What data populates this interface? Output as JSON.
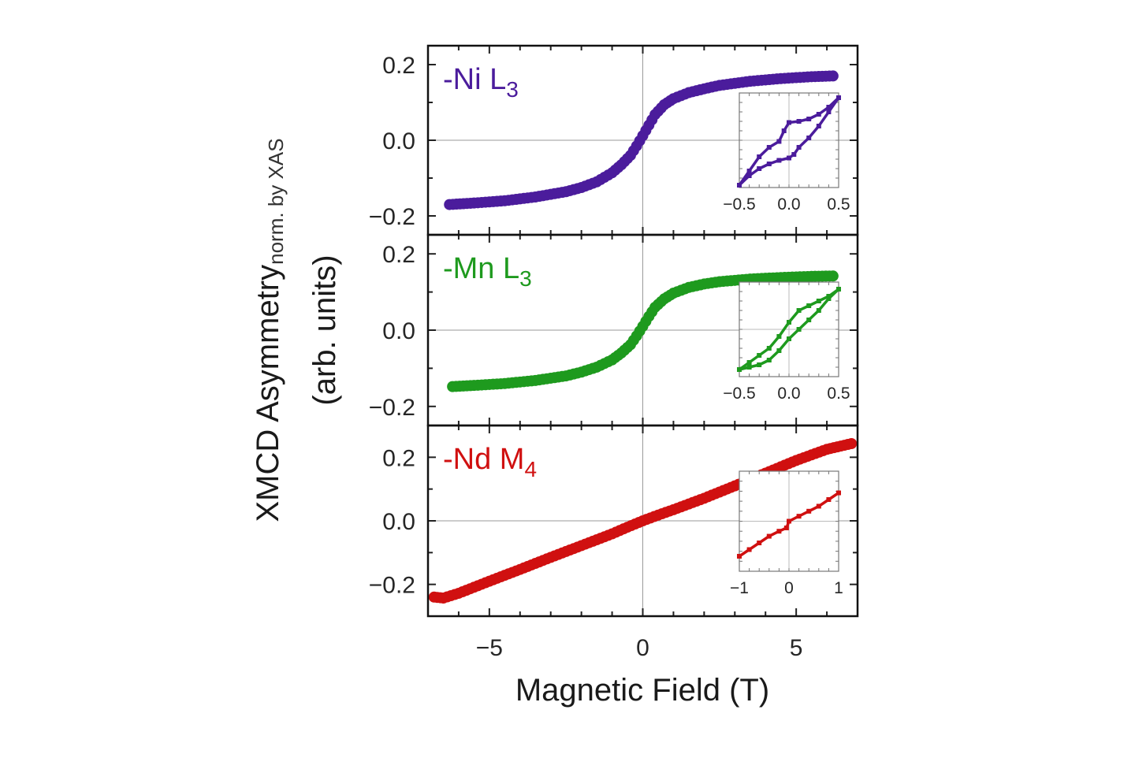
{
  "chart_data": {
    "type": "scatter",
    "title": "",
    "xlabel": "Magnetic Field (T)",
    "ylabel": {
      "main": "XMCD Asymmetry",
      "subscript": "norm. by XAS",
      "units": "(arb. units)"
    },
    "xlim": [
      -7,
      7
    ],
    "x_ticks": [
      -5,
      0,
      5
    ],
    "x_tick_labels": [
      "−5",
      "0",
      "5"
    ],
    "panels": [
      {
        "name": "ni",
        "label": "-Ni L",
        "label_sub": "3",
        "color": "#4B1C9C",
        "ylim": [
          -0.25,
          0.25
        ],
        "y_ticks": [
          -0.2,
          0.0,
          0.2
        ],
        "y_tick_labels": [
          "−0.2",
          "0.0",
          "0.2"
        ],
        "x": [
          -6.3,
          -5.5,
          -4.5,
          -3.5,
          -2.5,
          -2.0,
          -1.5,
          -1.0,
          -0.7,
          -0.4,
          -0.2,
          0.0,
          0.2,
          0.4,
          0.7,
          1.0,
          1.5,
          2.0,
          2.5,
          3.5,
          4.5,
          5.5,
          6.2
        ],
        "y": [
          -0.17,
          -0.166,
          -0.16,
          -0.15,
          -0.136,
          -0.125,
          -0.11,
          -0.086,
          -0.065,
          -0.04,
          -0.015,
          0.012,
          0.04,
          0.068,
          0.094,
          0.11,
          0.126,
          0.136,
          0.145,
          0.156,
          0.163,
          0.168,
          0.17
        ],
        "inset": {
          "xlim": [
            -0.5,
            0.5
          ],
          "ylim": [
            -0.2,
            0.2
          ],
          "x_ticks": [
            -0.5,
            0.0,
            0.5
          ],
          "x_tick_labels": [
            "−0.5",
            "0.0",
            "0.5"
          ],
          "branch_up": {
            "x": [
              -0.5,
              -0.4,
              -0.3,
              -0.2,
              -0.1,
              -0.05,
              0.0,
              0.1,
              0.2,
              0.3,
              0.4,
              0.5
            ],
            "y": [
              -0.19,
              -0.13,
              -0.07,
              -0.03,
              -0.005,
              0.04,
              0.075,
              0.08,
              0.09,
              0.11,
              0.14,
              0.18
            ]
          },
          "branch_down": {
            "x": [
              0.5,
              0.4,
              0.3,
              0.2,
              0.1,
              0.05,
              0.0,
              -0.1,
              -0.2,
              -0.3,
              -0.4,
              -0.5
            ],
            "y": [
              0.18,
              0.12,
              0.06,
              0.01,
              -0.03,
              -0.06,
              -0.075,
              -0.085,
              -0.1,
              -0.12,
              -0.15,
              -0.19
            ]
          }
        }
      },
      {
        "name": "mn",
        "label": "-Mn L",
        "label_sub": "3",
        "color": "#1E9A1E",
        "ylim": [
          -0.25,
          0.25
        ],
        "y_ticks": [
          -0.2,
          0.0,
          0.2
        ],
        "y_tick_labels": [
          "−0.2",
          "0.0",
          "0.2"
        ],
        "x": [
          -6.2,
          -5.5,
          -4.5,
          -3.5,
          -2.5,
          -2.0,
          -1.5,
          -1.0,
          -0.7,
          -0.4,
          -0.2,
          0.0,
          0.2,
          0.4,
          0.7,
          1.0,
          1.5,
          2.0,
          2.5,
          3.5,
          4.5,
          5.5,
          6.2
        ],
        "y": [
          -0.148,
          -0.145,
          -0.14,
          -0.132,
          -0.12,
          -0.11,
          -0.097,
          -0.078,
          -0.06,
          -0.038,
          -0.015,
          0.01,
          0.036,
          0.06,
          0.082,
          0.097,
          0.112,
          0.121,
          0.127,
          0.134,
          0.138,
          0.141,
          0.142
        ],
        "inset": {
          "xlim": [
            -0.5,
            0.5
          ],
          "ylim": [
            -0.2,
            0.2
          ],
          "x_ticks": [
            -0.5,
            0.0,
            0.5
          ],
          "x_tick_labels": [
            "−0.5",
            "0.0",
            "0.5"
          ],
          "branch_up": {
            "x": [
              -0.5,
              -0.4,
              -0.3,
              -0.2,
              -0.1,
              0.0,
              0.1,
              0.2,
              0.3,
              0.4,
              0.5
            ],
            "y": [
              -0.17,
              -0.14,
              -0.11,
              -0.08,
              -0.03,
              0.03,
              0.08,
              0.1,
              0.12,
              0.14,
              0.17
            ]
          },
          "branch_down": {
            "x": [
              0.5,
              0.4,
              0.3,
              0.2,
              0.1,
              0.0,
              -0.1,
              -0.2,
              -0.3,
              -0.4,
              -0.5
            ],
            "y": [
              0.17,
              0.13,
              0.08,
              0.04,
              0.0,
              -0.04,
              -0.09,
              -0.13,
              -0.15,
              -0.16,
              -0.17
            ]
          }
        }
      },
      {
        "name": "nd",
        "label": "-Nd M",
        "label_sub": "4",
        "color": "#D01010",
        "ylim": [
          -0.3,
          0.3
        ],
        "y_ticks": [
          -0.2,
          0.0,
          0.2
        ],
        "y_tick_labels": [
          "−0.2",
          "0.0",
          "0.2"
        ],
        "x": [
          -6.8,
          -6.5,
          -6,
          -5,
          -4,
          -3,
          -2,
          -1,
          -0.5,
          0,
          0.5,
          1,
          2,
          3,
          4,
          5,
          6,
          6.8
        ],
        "y": [
          -0.24,
          -0.243,
          -0.228,
          -0.19,
          -0.153,
          -0.115,
          -0.078,
          -0.041,
          -0.02,
          0.0,
          0.018,
          0.035,
          0.071,
          0.11,
          0.15,
          0.19,
          0.225,
          0.243
        ],
        "inset": {
          "xlim": [
            -1,
            1
          ],
          "ylim": [
            -0.3,
            0.3
          ],
          "x_ticks": [
            -1,
            0,
            1
          ],
          "x_tick_labels": [
            "−1",
            "0",
            "1"
          ],
          "branch_up": {
            "x": [
              -1.0,
              -0.8,
              -0.6,
              -0.4,
              -0.2,
              -0.05,
              0.0,
              0.2,
              0.4,
              0.6,
              0.8,
              1.0
            ],
            "y": [
              -0.21,
              -0.17,
              -0.13,
              -0.09,
              -0.06,
              -0.04,
              0.0,
              0.03,
              0.06,
              0.09,
              0.13,
              0.17
            ]
          }
        }
      }
    ]
  }
}
